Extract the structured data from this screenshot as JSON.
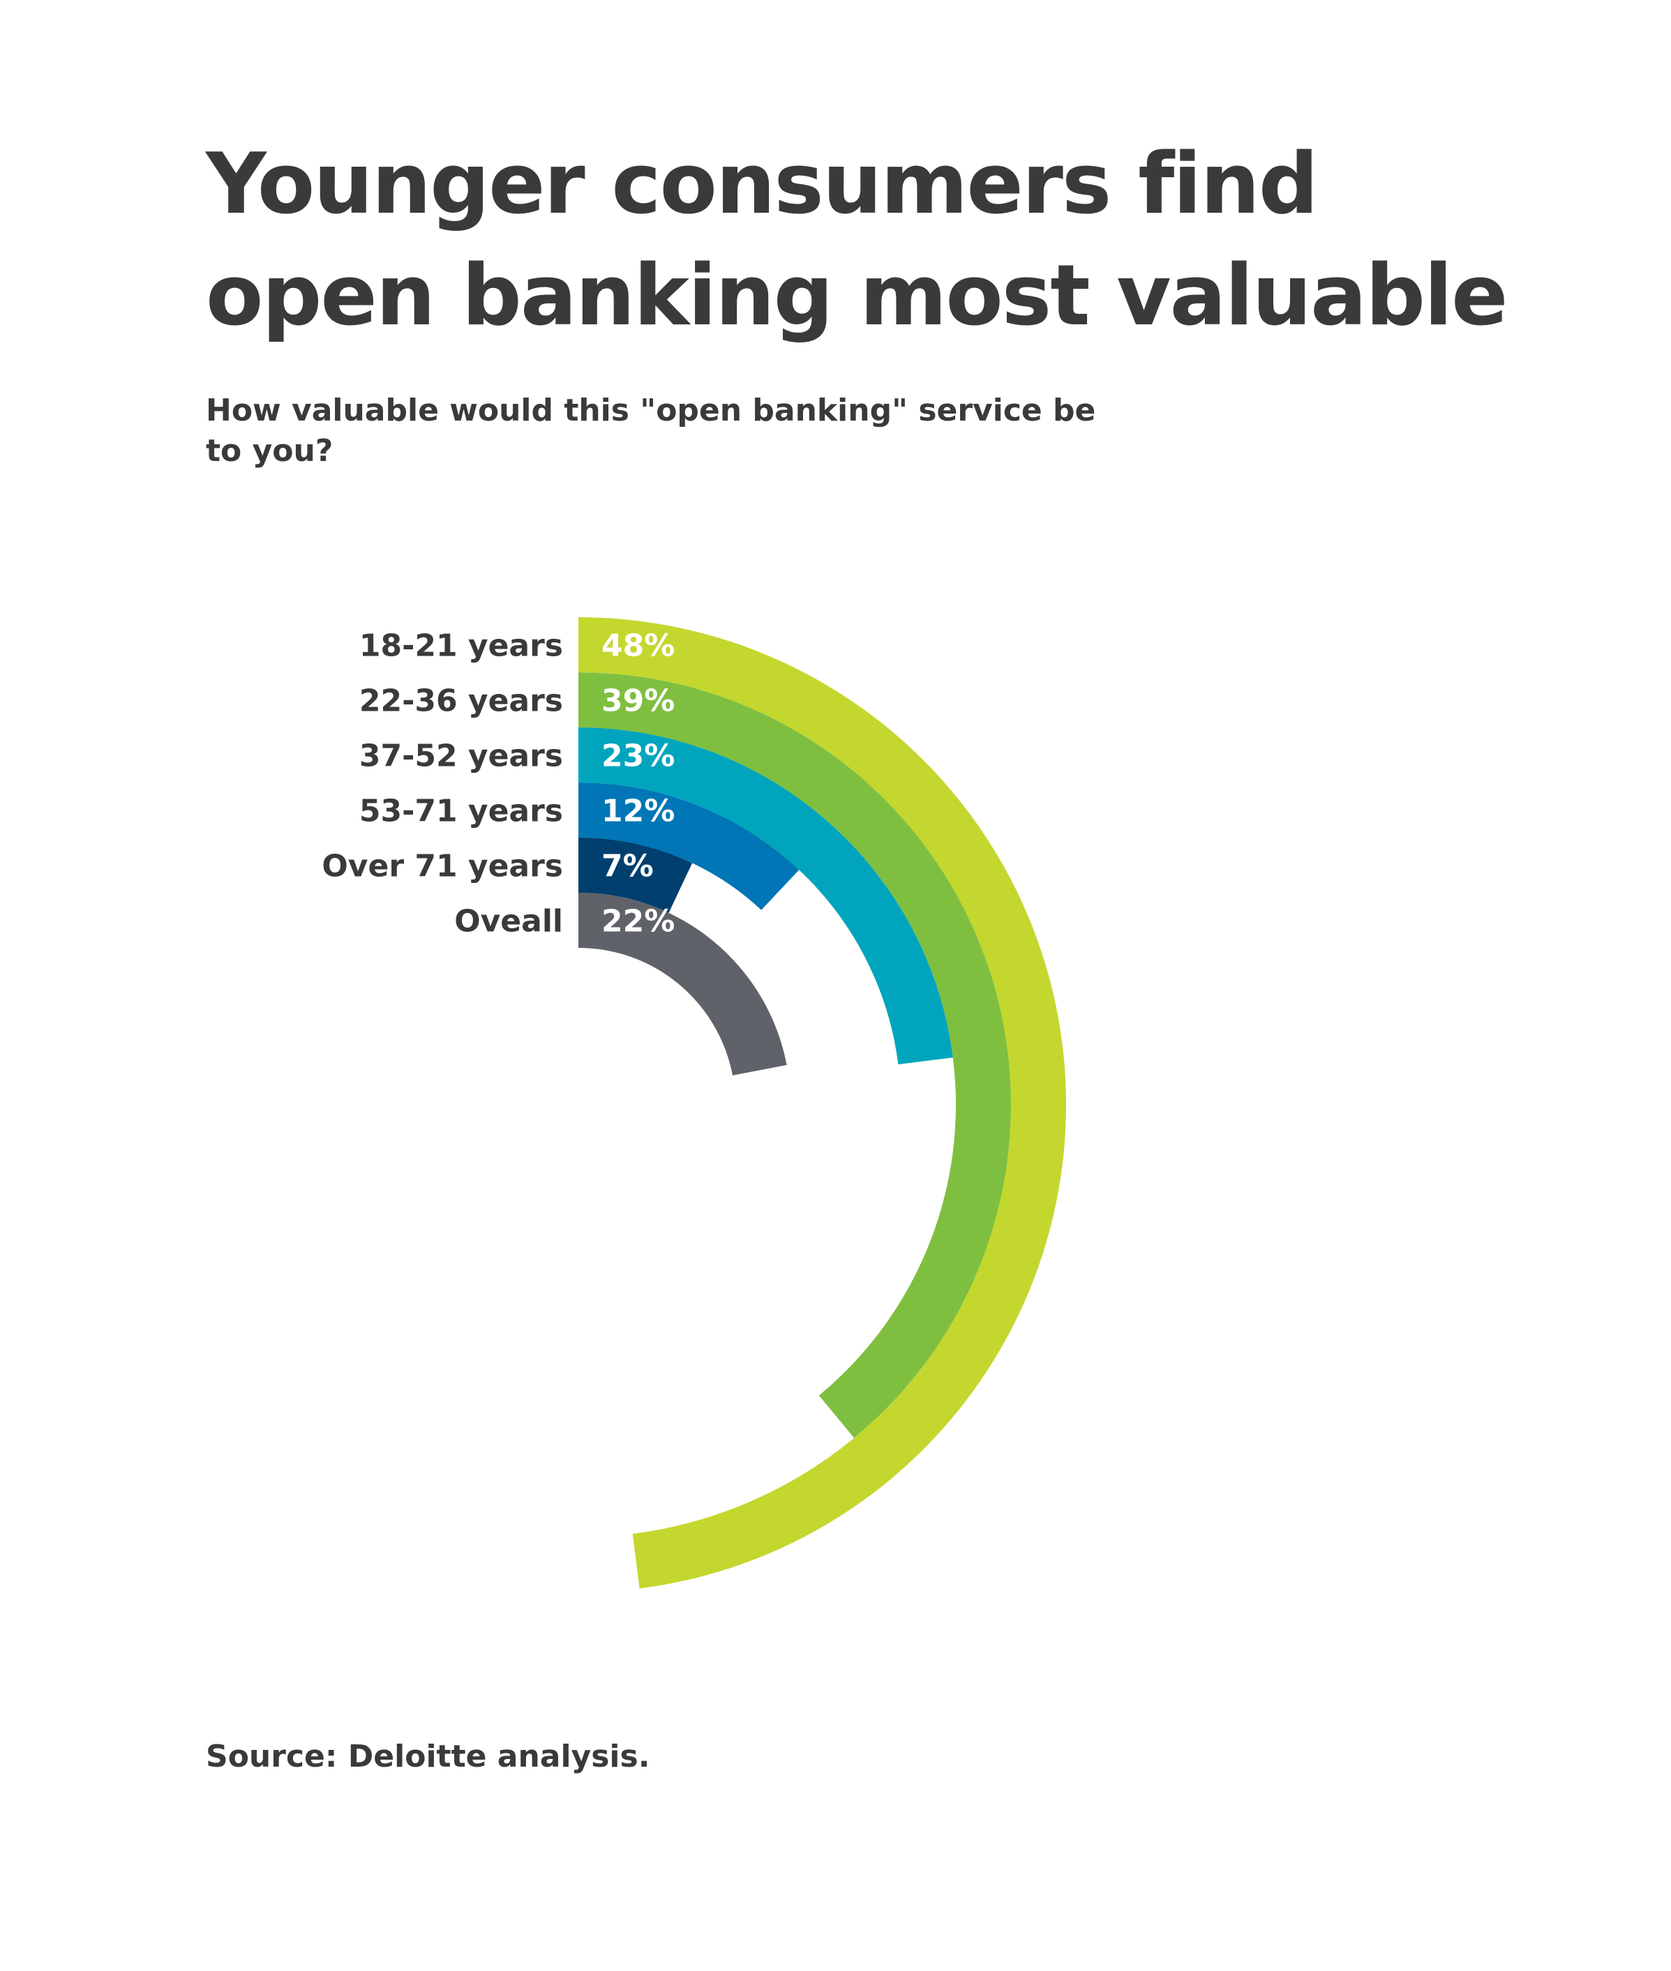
{
  "header": {
    "title": "Younger consumers find open banking most valuable",
    "subtitle": "How valuable would this \"open banking\" service be to you?"
  },
  "footer": {
    "source": "Source: Deloitte analysis."
  },
  "chart_data": {
    "type": "radial-bar",
    "title": "Younger consumers find open banking most valuable",
    "subtitle": "How valuable would this \"open banking\" service be to you?",
    "unit": "%",
    "scale_max": 100,
    "categories": [
      "18-21 years",
      "22-36 years",
      "37-52 years",
      "53-71 years",
      "Over 71 years",
      "Oveall"
    ],
    "values": [
      48,
      39,
      23,
      12,
      7,
      22
    ],
    "value_labels": [
      "48%",
      "39%",
      "23%",
      "12%",
      "7%",
      "22%"
    ],
    "colors": [
      "#c4d72e",
      "#7fbf3f",
      "#00a5bd",
      "#0076b6",
      "#003f6e",
      "#5f6268"
    ],
    "label_color": "#ffffff",
    "category_label_color": "#3a3a3a"
  }
}
